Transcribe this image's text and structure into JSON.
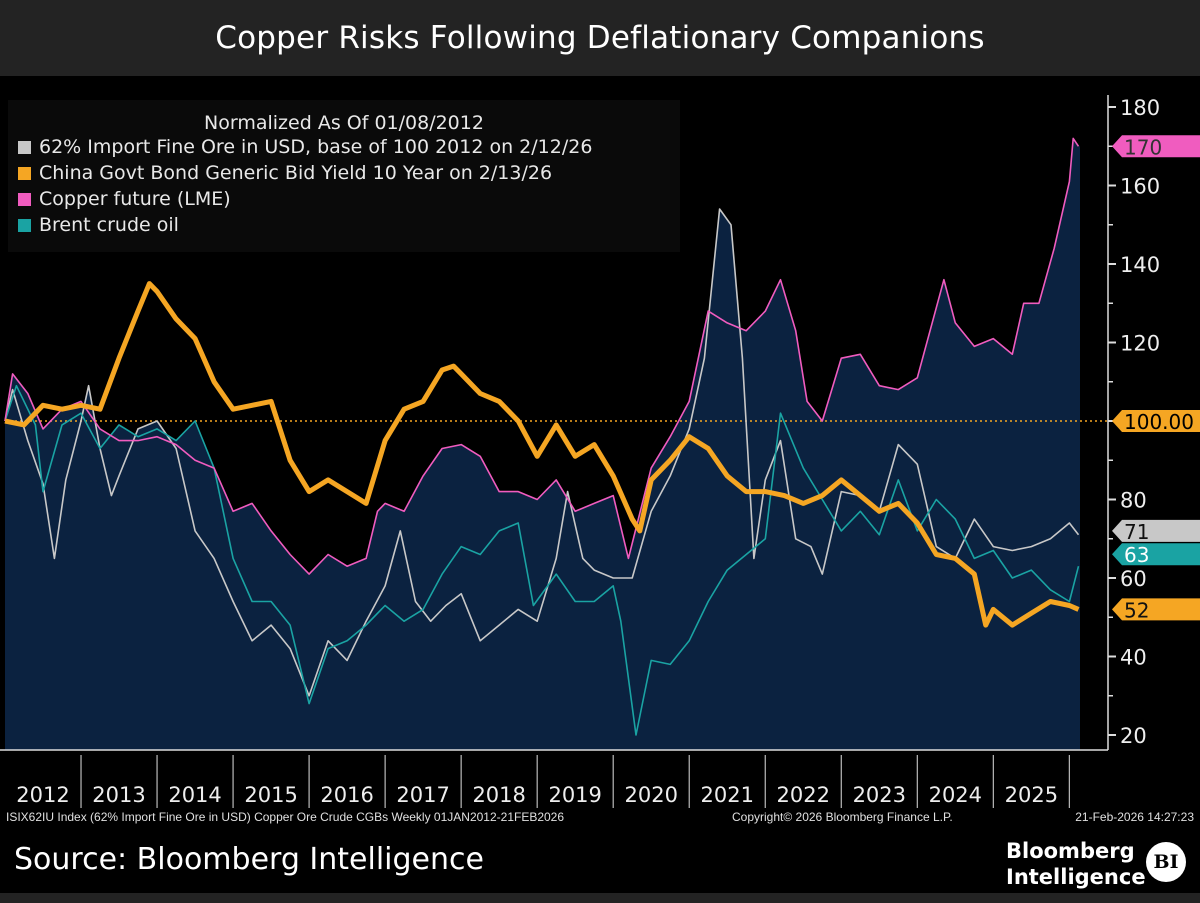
{
  "title": "Copper Risks Following Deflationary Companions",
  "chart_data": {
    "type": "line",
    "title": "Copper Risks Following Deflationary Companions",
    "legend_title": "Normalized As Of 01/08/2012",
    "legend_placement": "top-left",
    "xlabel": "",
    "ylabel": "",
    "x_tick_labels": [
      "2012",
      "2013",
      "2014",
      "2015",
      "2016",
      "2017",
      "2018",
      "2019",
      "2020",
      "2021",
      "2022",
      "2023",
      "2024",
      "2025"
    ],
    "xlim": [
      2012.0,
      2026.14
    ],
    "ylim": [
      20,
      180
    ],
    "y_ticks": [
      20,
      40,
      60,
      80,
      100,
      120,
      140,
      160,
      180
    ],
    "y_axis_side": "right",
    "grid": false,
    "reference_line": {
      "value": 100,
      "label": "100.00",
      "color": "#f5a623"
    },
    "series": [
      {
        "name": "62% Import Fine Ore in USD, base of 100 2012 on 2/12/26",
        "color": "#c8c8c8",
        "last_label": "71",
        "x": [
          2012.0,
          2012.1,
          2012.3,
          2012.5,
          2012.65,
          2012.8,
          2013.0,
          2013.1,
          2013.25,
          2013.4,
          2013.5,
          2013.75,
          2014.0,
          2014.25,
          2014.5,
          2014.75,
          2015.0,
          2015.25,
          2015.5,
          2015.75,
          2016.0,
          2016.25,
          2016.5,
          2016.75,
          2017.0,
          2017.2,
          2017.4,
          2017.6,
          2017.8,
          2018.0,
          2018.25,
          2018.5,
          2018.75,
          2019.0,
          2019.25,
          2019.4,
          2019.6,
          2019.75,
          2020.0,
          2020.25,
          2020.5,
          2020.75,
          2021.0,
          2021.2,
          2021.4,
          2021.55,
          2021.7,
          2021.85,
          2022.0,
          2022.2,
          2022.4,
          2022.6,
          2022.75,
          2023.0,
          2023.25,
          2023.5,
          2023.75,
          2024.0,
          2024.25,
          2024.5,
          2024.75,
          2025.0,
          2025.25,
          2025.5,
          2025.75,
          2026.0,
          2026.12
        ],
        "y": [
          100,
          108,
          95,
          84,
          65,
          85,
          100,
          109,
          93,
          81,
          86,
          98,
          100,
          93,
          72,
          65,
          54,
          44,
          48,
          42,
          30,
          44,
          39,
          49,
          58,
          72,
          54,
          49,
          53,
          56,
          44,
          48,
          52,
          49,
          65,
          82,
          65,
          62,
          60,
          60,
          77,
          86,
          98,
          116,
          154,
          150,
          116,
          65,
          85,
          95,
          70,
          68,
          61,
          82,
          81,
          77,
          94,
          89,
          68,
          65,
          75,
          68,
          67,
          68,
          70,
          74,
          71
        ]
      },
      {
        "name": "China Govt Bond Generic Bid Yield 10 Year on 2/13/26",
        "color": "#f5a623",
        "last_label": "52",
        "x": [
          2012.0,
          2012.25,
          2012.5,
          2012.75,
          2013.0,
          2013.25,
          2013.5,
          2013.75,
          2013.9,
          2014.0,
          2014.25,
          2014.5,
          2014.75,
          2015.0,
          2015.25,
          2015.5,
          2015.75,
          2016.0,
          2016.25,
          2016.5,
          2016.75,
          2017.0,
          2017.25,
          2017.5,
          2017.75,
          2017.9,
          2018.0,
          2018.25,
          2018.5,
          2018.75,
          2019.0,
          2019.25,
          2019.5,
          2019.75,
          2020.0,
          2020.25,
          2020.35,
          2020.5,
          2020.75,
          2021.0,
          2021.25,
          2021.5,
          2021.75,
          2022.0,
          2022.25,
          2022.5,
          2022.75,
          2023.0,
          2023.25,
          2023.5,
          2023.75,
          2024.0,
          2024.25,
          2024.5,
          2024.75,
          2024.9,
          2025.0,
          2025.25,
          2025.5,
          2025.75,
          2026.0,
          2026.12
        ],
        "y": [
          100,
          99,
          104,
          103,
          104,
          103,
          116,
          128,
          135,
          133,
          126,
          121,
          110,
          103,
          104,
          105,
          90,
          82,
          85,
          82,
          79,
          95,
          103,
          105,
          113,
          114,
          112,
          107,
          105,
          100,
          91,
          99,
          91,
          94,
          86,
          75,
          72,
          85,
          90,
          96,
          93,
          86,
          82,
          82,
          81,
          79,
          81,
          85,
          81,
          77,
          79,
          74,
          66,
          65,
          61,
          48,
          52,
          48,
          51,
          54,
          53,
          52
        ]
      },
      {
        "name": "Copper future (LME)",
        "color": "#f05cbf",
        "last_label": "170",
        "x": [
          2012.0,
          2012.1,
          2012.3,
          2012.5,
          2012.75,
          2013.0,
          2013.25,
          2013.5,
          2013.75,
          2014.0,
          2014.25,
          2014.5,
          2014.75,
          2015.0,
          2015.25,
          2015.5,
          2015.75,
          2016.0,
          2016.25,
          2016.5,
          2016.75,
          2016.9,
          2017.0,
          2017.25,
          2017.5,
          2017.75,
          2018.0,
          2018.25,
          2018.5,
          2018.75,
          2019.0,
          2019.25,
          2019.5,
          2019.75,
          2020.0,
          2020.2,
          2020.5,
          2020.75,
          2021.0,
          2021.25,
          2021.5,
          2021.75,
          2022.0,
          2022.2,
          2022.4,
          2022.55,
          2022.75,
          2023.0,
          2023.25,
          2023.5,
          2023.75,
          2024.0,
          2024.35,
          2024.5,
          2024.75,
          2025.0,
          2025.25,
          2025.4,
          2025.6,
          2025.8,
          2026.0,
          2026.05,
          2026.12
        ],
        "y": [
          100,
          112,
          107,
          98,
          103,
          105,
          98,
          95,
          95,
          96,
          94,
          90,
          88,
          77,
          79,
          72,
          66,
          61,
          66,
          63,
          65,
          77,
          79,
          77,
          86,
          93,
          94,
          91,
          82,
          82,
          80,
          85,
          77,
          79,
          81,
          65,
          88,
          96,
          105,
          128,
          125,
          123,
          128,
          136,
          123,
          105,
          100,
          116,
          117,
          109,
          108,
          111,
          136,
          125,
          119,
          121,
          117,
          130,
          130,
          144,
          161,
          172,
          170
        ]
      },
      {
        "name": "Brent crude oil",
        "color": "#1aa3a3",
        "last_label": "63",
        "x": [
          2012.0,
          2012.15,
          2012.4,
          2012.5,
          2012.75,
          2013.0,
          2013.25,
          2013.5,
          2013.75,
          2014.0,
          2014.25,
          2014.5,
          2014.75,
          2015.0,
          2015.25,
          2015.5,
          2015.75,
          2016.0,
          2016.25,
          2016.5,
          2016.75,
          2017.0,
          2017.25,
          2017.5,
          2017.75,
          2018.0,
          2018.25,
          2018.5,
          2018.75,
          2018.95,
          2019.25,
          2019.5,
          2019.75,
          2020.0,
          2020.1,
          2020.3,
          2020.5,
          2020.75,
          2021.0,
          2021.25,
          2021.5,
          2021.75,
          2022.0,
          2022.2,
          2022.5,
          2022.75,
          2023.0,
          2023.25,
          2023.5,
          2023.75,
          2024.0,
          2024.25,
          2024.5,
          2024.75,
          2025.0,
          2025.25,
          2025.5,
          2025.75,
          2026.0,
          2026.12
        ],
        "y": [
          100,
          109,
          99,
          82,
          99,
          102,
          93,
          99,
          96,
          98,
          95,
          100,
          88,
          65,
          54,
          54,
          48,
          28,
          42,
          44,
          48,
          53,
          49,
          52,
          61,
          68,
          66,
          72,
          74,
          53,
          61,
          54,
          54,
          58,
          49,
          20,
          39,
          38,
          44,
          54,
          62,
          66,
          70,
          102,
          88,
          80,
          72,
          77,
          71,
          85,
          72,
          80,
          75,
          65,
          67,
          60,
          62,
          57,
          54,
          63
        ]
      }
    ]
  },
  "footer": {
    "info": "ISIX62IU Index (62% Import Fine Ore in USD) Copper Ore Crude CGBs Weekly 01JAN2012-21FEB2026",
    "copyright": "Copyright© 2026 Bloomberg Finance L.P.",
    "timestamp": "21-Feb-2026 14:27:23",
    "source": "Source: Bloomberg Intelligence",
    "brand_line1": "Bloomberg",
    "brand_line2": "Intelligence",
    "brand_logo": "BI"
  },
  "colors": {
    "plot_fill": "#0b2240",
    "background": "#000000",
    "title_bar": "#232323"
  }
}
